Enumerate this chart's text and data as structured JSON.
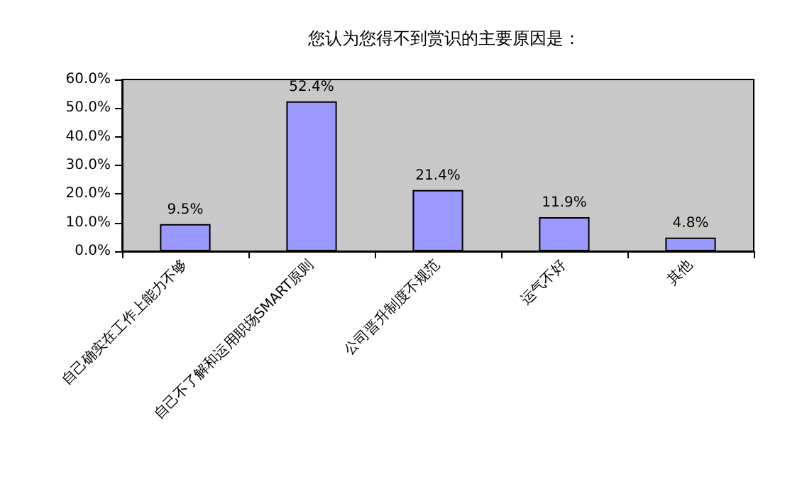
{
  "chart_data": {
    "type": "bar",
    "title": "您认为您得不到赏识的主要原因是：",
    "categories": [
      "自己确实在工作上能力不够",
      "自己不了解和运用职场SMART原则",
      "公司晋升制度不规范",
      "运气不好",
      "其他"
    ],
    "values": [
      9.5,
      52.4,
      21.4,
      11.9,
      4.8
    ],
    "value_labels": [
      "9.5%",
      "52.4%",
      "21.4%",
      "11.9%",
      "4.8%"
    ],
    "color": "#9999ff",
    "ylim": [
      0,
      60
    ],
    "yticks": [
      {
        "value": 0,
        "label": "0.0%"
      },
      {
        "value": 10,
        "label": "10.0%"
      },
      {
        "value": 20,
        "label": "20.0%"
      },
      {
        "value": 30,
        "label": "30.0%"
      },
      {
        "value": 40,
        "label": "40.0%"
      },
      {
        "value": 50,
        "label": "50.0%"
      },
      {
        "value": 60,
        "label": "60.0%"
      }
    ],
    "grid": false
  }
}
